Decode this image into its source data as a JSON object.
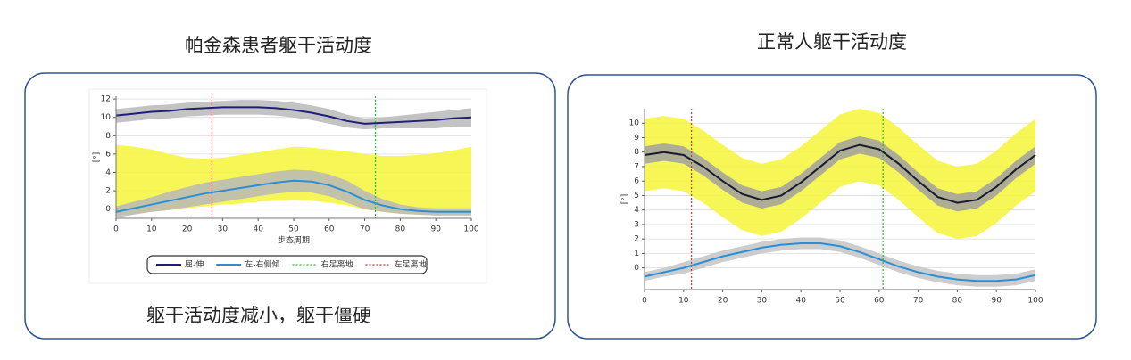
{
  "chart_data": [
    {
      "type": "line",
      "title": "帕金森患者躯干活动度",
      "note": "躯干活动度减小，躯干僵硬",
      "x_label": "步态周期",
      "y_label": "[°]",
      "legend": true,
      "grid": true,
      "xlim": [
        0,
        100
      ],
      "ylim": [
        -1,
        12.3
      ],
      "xticks": [
        0,
        10,
        20,
        30,
        40,
        50,
        60,
        70,
        80,
        90,
        100
      ],
      "yticks": [
        0,
        2,
        4,
        6,
        8,
        10,
        12
      ],
      "x": [
        0,
        5,
        10,
        15,
        20,
        25,
        30,
        35,
        40,
        45,
        50,
        55,
        60,
        65,
        70,
        75,
        80,
        85,
        90,
        95,
        100
      ],
      "bands": [
        {
          "color": "#f5f53a",
          "upper": [
            7.0,
            6.8,
            6.5,
            6.0,
            5.6,
            5.5,
            5.6,
            5.9,
            6.2,
            6.5,
            6.8,
            6.7,
            6.5,
            6.3,
            6.0,
            5.8,
            5.8,
            5.9,
            6.1,
            6.4,
            6.8
          ],
          "lower": [
            -0.6,
            -0.5,
            -0.3,
            -0.1,
            0.1,
            0.3,
            0.5,
            0.6,
            0.8,
            0.9,
            1.0,
            0.9,
            0.7,
            0.4,
            0.0,
            -0.3,
            -0.5,
            -0.6,
            -0.6,
            -0.6,
            -0.6
          ]
        },
        {
          "color": "#b8b8b8",
          "upper": [
            0.3,
            0.8,
            1.3,
            1.9,
            2.4,
            2.9,
            3.2,
            3.5,
            3.8,
            4.1,
            4.3,
            4.2,
            3.8,
            3.1,
            2.0,
            1.1,
            0.5,
            0.2,
            0.1,
            0.1,
            0.1
          ],
          "lower": [
            -0.9,
            -0.6,
            -0.3,
            -0.1,
            0.2,
            0.5,
            0.8,
            1.1,
            1.4,
            1.7,
            1.9,
            1.8,
            1.4,
            0.7,
            0.0,
            -0.3,
            -0.5,
            -0.6,
            -0.7,
            -0.7,
            -0.7
          ]
        },
        {
          "color": "#b8b8b8",
          "upper": [
            10.9,
            11.1,
            11.3,
            11.4,
            11.6,
            11.7,
            11.8,
            11.9,
            11.9,
            11.8,
            11.6,
            11.3,
            10.9,
            10.3,
            9.9,
            10.0,
            10.2,
            10.4,
            10.6,
            10.8,
            11.0
          ],
          "lower": [
            9.4,
            9.6,
            9.8,
            9.9,
            10.1,
            10.2,
            10.3,
            10.3,
            10.3,
            10.2,
            10.0,
            9.7,
            9.3,
            8.9,
            8.7,
            8.8,
            8.8,
            8.8,
            8.8,
            9.0,
            9.0
          ]
        }
      ],
      "series": [
        {
          "name": "屈-伸",
          "color": "#1f1f7a",
          "values": [
            10.2,
            10.4,
            10.6,
            10.7,
            10.9,
            11.0,
            11.1,
            11.1,
            11.1,
            11.0,
            10.8,
            10.5,
            10.1,
            9.6,
            9.3,
            9.4,
            9.5,
            9.6,
            9.7,
            9.9,
            10.0
          ]
        },
        {
          "name": "左-右侧倾",
          "color": "#2b8fd8",
          "values": [
            -0.3,
            0.1,
            0.5,
            0.9,
            1.3,
            1.7,
            2.0,
            2.3,
            2.6,
            2.9,
            3.1,
            3.0,
            2.6,
            1.9,
            1.0,
            0.4,
            0.0,
            -0.2,
            -0.3,
            -0.3,
            -0.3
          ]
        }
      ],
      "vlines": [
        {
          "name": "右足离地",
          "color": "#22bb22",
          "x": 73
        },
        {
          "name": "左足离地",
          "color": "#d03030",
          "x": 27
        }
      ]
    },
    {
      "type": "line",
      "title": "正常人躯干活动度",
      "y_label": "[°]",
      "grid": true,
      "legend": false,
      "xlim": [
        0,
        100
      ],
      "ylim": [
        -1.5,
        11
      ],
      "xticks": [
        0,
        10,
        20,
        30,
        40,
        50,
        60,
        70,
        80,
        90,
        100
      ],
      "yticks": [
        0,
        1,
        2,
        3,
        4,
        5,
        6,
        7,
        8,
        9,
        10
      ],
      "x": [
        0,
        5,
        10,
        15,
        20,
        25,
        30,
        35,
        40,
        45,
        50,
        55,
        60,
        65,
        70,
        75,
        80,
        85,
        90,
        95,
        100
      ],
      "bands": [
        {
          "color": "#f5f53a",
          "upper": [
            10.3,
            10.5,
            10.3,
            9.5,
            8.5,
            7.6,
            7.2,
            7.5,
            8.4,
            9.5,
            10.6,
            11.0,
            10.7,
            9.7,
            8.5,
            7.4,
            7.0,
            7.2,
            8.1,
            9.3,
            10.3
          ],
          "lower": [
            5.3,
            5.5,
            5.3,
            4.5,
            3.5,
            2.6,
            2.2,
            2.5,
            3.4,
            4.5,
            5.6,
            6.0,
            5.7,
            4.7,
            3.5,
            2.4,
            2.0,
            2.2,
            3.1,
            4.3,
            5.3
          ]
        },
        {
          "color": "#a0a0a0",
          "upper": [
            8.4,
            8.6,
            8.4,
            7.6,
            6.6,
            5.7,
            5.3,
            5.6,
            6.5,
            7.6,
            8.7,
            9.1,
            8.8,
            7.8,
            6.6,
            5.5,
            5.1,
            5.3,
            6.2,
            7.4,
            8.4
          ],
          "lower": [
            7.2,
            7.4,
            7.2,
            6.4,
            5.4,
            4.5,
            4.1,
            4.4,
            5.3,
            6.4,
            7.5,
            7.9,
            7.6,
            6.6,
            5.4,
            4.3,
            3.9,
            4.1,
            5.0,
            6.2,
            7.2
          ]
        },
        {
          "color": "#c4c4c4",
          "upper": [
            -0.3,
            0.0,
            0.4,
            0.8,
            1.2,
            1.5,
            1.8,
            2.0,
            2.1,
            2.1,
            1.9,
            1.5,
            1.0,
            0.5,
            0.1,
            -0.2,
            -0.4,
            -0.5,
            -0.5,
            -0.4,
            -0.1
          ],
          "lower": [
            -0.9,
            -0.6,
            -0.4,
            0.0,
            0.4,
            0.7,
            1.0,
            1.2,
            1.3,
            1.3,
            1.1,
            0.7,
            0.2,
            -0.3,
            -0.7,
            -1.0,
            -1.2,
            -1.3,
            -1.3,
            -1.2,
            -0.9
          ]
        }
      ],
      "series": [
        {
          "color": "#1a1a2e",
          "values": [
            7.8,
            8.0,
            7.8,
            7.0,
            6.0,
            5.1,
            4.7,
            5.0,
            5.9,
            7.0,
            8.1,
            8.5,
            8.2,
            7.2,
            6.0,
            4.9,
            4.5,
            4.7,
            5.6,
            6.8,
            7.8
          ]
        },
        {
          "color": "#2b8fd8",
          "values": [
            -0.6,
            -0.3,
            0.0,
            0.4,
            0.8,
            1.1,
            1.4,
            1.6,
            1.7,
            1.7,
            1.5,
            1.1,
            0.6,
            0.1,
            -0.3,
            -0.6,
            -0.8,
            -0.9,
            -0.9,
            -0.8,
            -0.5
          ]
        }
      ],
      "vlines": [
        {
          "color": "#d03030",
          "x": 12
        },
        {
          "color": "#22bb22",
          "x": 61
        }
      ]
    }
  ]
}
